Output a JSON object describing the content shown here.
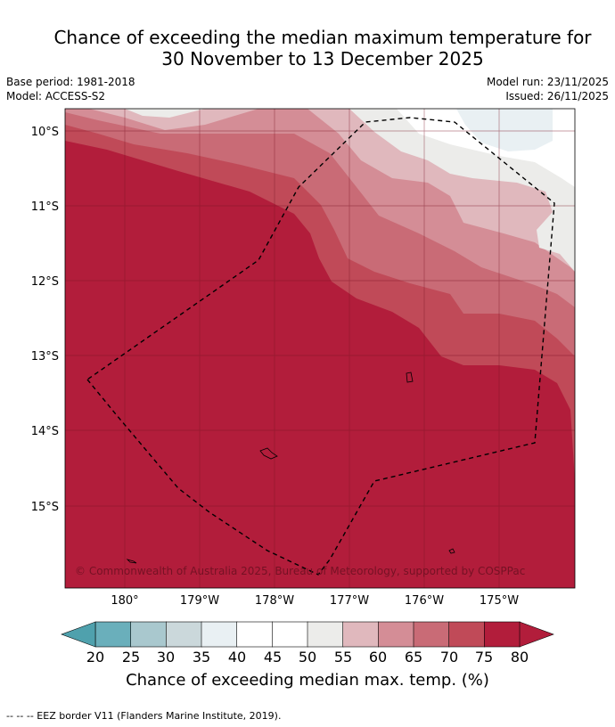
{
  "title": {
    "line1": "Chance of exceeding the median maximum temperature for",
    "line2": "30 November to 13 December 2025"
  },
  "meta": {
    "base_period": "Base period: 1981-2018",
    "model": "Model: ACCESS-S2",
    "model_run": "Model run: 23/11/2025",
    "issued": "Issued: 26/11/2025"
  },
  "map": {
    "lat_labels": [
      "10°S",
      "11°S",
      "12°S",
      "13°S",
      "14°S",
      "15°S"
    ],
    "lon_labels": [
      "180°",
      "179°W",
      "178°W",
      "177°W",
      "176°W",
      "175°W"
    ],
    "copyright": "© Commonwealth of Australia 2025, Bureau of Meteorology, supported by COSPPac"
  },
  "colorbar": {
    "ticks": [
      "20",
      "25",
      "30",
      "35",
      "40",
      "45",
      "50",
      "55",
      "60",
      "65",
      "70",
      "75",
      "80"
    ],
    "label": "Chance of exceeding median max. temp. (%)",
    "colors": [
      "#6aafbb",
      "#8cbcc8",
      "#a9c8ce",
      "#cbd8db",
      "#e9f0f3",
      "#ffffff",
      "#ffffff",
      "#ececea",
      "#e0b8bd",
      "#d48d96",
      "#c96b76",
      "#c04a58",
      "#b21d3b"
    ],
    "under_color": "#4fa1ad",
    "over_color": "#b21d3b"
  },
  "footnote": "-- -- -- EEZ border V11 (Flanders Marine Institute, 2019)."
}
